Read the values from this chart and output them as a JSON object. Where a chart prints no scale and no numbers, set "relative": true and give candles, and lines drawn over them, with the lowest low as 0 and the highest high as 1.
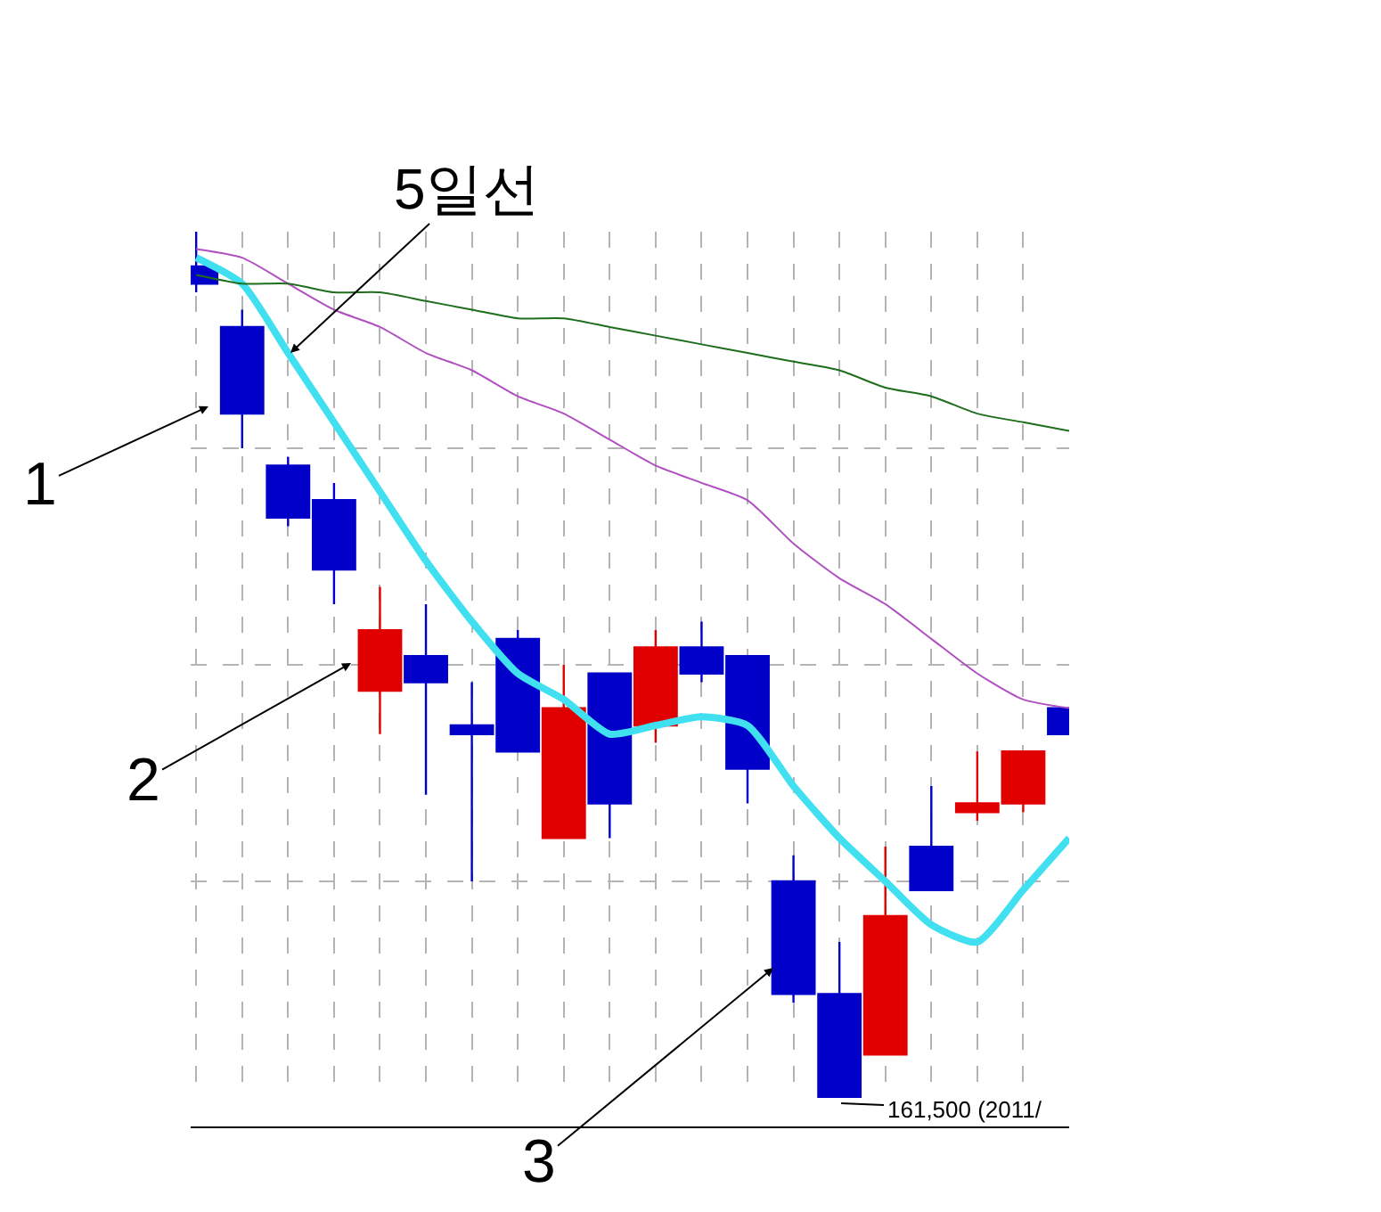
{
  "chart_data": {
    "type": "candlestick",
    "relative": true,
    "categories": [
      null,
      null,
      null,
      null,
      null,
      null,
      null,
      null,
      null,
      null,
      null,
      null,
      null,
      null,
      null,
      null,
      null,
      null,
      null,
      null
    ],
    "ohlc": [
      [
        0.96,
        1.0,
        0.93,
        0.94
      ],
      [
        0.89,
        0.91,
        0.75,
        0.79
      ],
      [
        0.73,
        0.74,
        0.66,
        0.67
      ],
      [
        0.69,
        0.71,
        0.57,
        0.61
      ],
      [
        0.47,
        0.59,
        0.42,
        0.54
      ],
      [
        0.51,
        0.57,
        0.35,
        0.48
      ],
      [
        0.43,
        0.48,
        0.25,
        0.42
      ],
      [
        0.53,
        0.54,
        0.4,
        0.4
      ],
      [
        0.3,
        0.5,
        0.3,
        0.45
      ],
      [
        0.49,
        0.49,
        0.3,
        0.34
      ],
      [
        0.43,
        0.54,
        0.41,
        0.52
      ],
      [
        0.52,
        0.55,
        0.48,
        0.49
      ],
      [
        0.51,
        0.51,
        0.34,
        0.38
      ],
      [
        0.25,
        0.28,
        0.11,
        0.12
      ],
      [
        0.12,
        0.18,
        0.0,
        0.0
      ],
      [
        0.05,
        0.29,
        0.05,
        0.21
      ],
      [
        0.29,
        0.36,
        0.24,
        0.24
      ],
      [
        0.33,
        0.4,
        0.32,
        0.34
      ],
      [
        0.34,
        0.4,
        0.33,
        0.4
      ],
      [
        0.45,
        0.45,
        0.42,
        0.42
      ]
    ],
    "colors": [
      "#0000c8",
      "#0000c8",
      "#0000c8",
      "#0000c8",
      "#e00000",
      "#0000c8",
      "#0000c8",
      "#0000c8",
      "#e00000",
      "#0000c8",
      "#e00000",
      "#0000c8",
      "#0000c8",
      "#0000c8",
      "#0000c8",
      "#e00000",
      "#0000c8",
      "#e00000",
      "#e00000",
      "#0000c8"
    ],
    "series": [
      {
        "name": "5일선",
        "type": "line",
        "color": "#40e0f0",
        "values": [
          0.97,
          0.94,
          0.86,
          0.78,
          0.7,
          0.62,
          0.55,
          0.49,
          0.46,
          0.42,
          0.43,
          0.44,
          0.43,
          0.36,
          0.3,
          0.25,
          0.2,
          0.18,
          0.24,
          0.3
        ]
      },
      {
        "type": "line",
        "color": "#b050c0",
        "values": [
          0.98,
          0.97,
          0.94,
          0.91,
          0.89,
          0.86,
          0.84,
          0.81,
          0.79,
          0.76,
          0.73,
          0.71,
          0.69,
          0.64,
          0.6,
          0.57,
          0.53,
          0.49,
          0.46,
          0.45
        ]
      },
      {
        "type": "line",
        "color": "#1e6e1e",
        "values": [
          0.95,
          0.94,
          0.94,
          0.93,
          0.93,
          0.92,
          0.91,
          0.9,
          0.9,
          0.89,
          0.88,
          0.87,
          0.86,
          0.85,
          0.84,
          0.82,
          0.81,
          0.79,
          0.78,
          0.77
        ]
      }
    ],
    "annotations": [
      "1",
      "2",
      "3",
      "161,500 (2011/"
    ],
    "grid": true,
    "legend": false
  }
}
